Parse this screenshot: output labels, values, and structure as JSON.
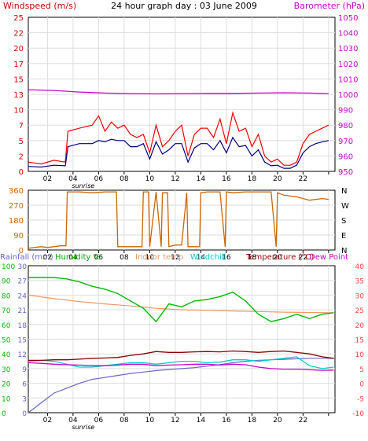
{
  "chart_data": [
    {
      "type": "line",
      "title": "24 hour graph day : 03 June 2009",
      "left_axis_title": "Windspeed (m/s)",
      "right_axis_title": "Barometer (hPa)",
      "x_ticks": [
        "02",
        "04",
        "06",
        "08",
        "10",
        "12",
        "14",
        "16",
        "18",
        "20",
        "22",
        ""
      ],
      "x_sub_label": "sunrise",
      "ylim_left": [
        0,
        25
      ],
      "yticks_left": [
        "0",
        "2",
        "5",
        "7",
        "10",
        "13",
        "15",
        "17",
        "20",
        "22",
        "25"
      ],
      "ylim_right": [
        950,
        1050
      ],
      "yticks_right": [
        "950",
        "960",
        "970",
        "980",
        "990",
        "1000",
        "1010",
        "1020",
        "1030",
        "1040",
        "1050"
      ],
      "colors": {
        "gust": "#ff0000",
        "wind": "#000080",
        "barometer": "#cc00cc",
        "left_title": "#cc0000",
        "right_title": "#cc00cc"
      },
      "series": [
        {
          "name": "gust",
          "hours": [
            0,
            1,
            2,
            2.9,
            3.1,
            4,
            5,
            5.5,
            6,
            6.5,
            7,
            7.5,
            8,
            8.5,
            9,
            9.5,
            10,
            10.5,
            11,
            11.5,
            12,
            12.5,
            13,
            13.5,
            14,
            14.5,
            15,
            15.5,
            16,
            16.5,
            17,
            17.5,
            18,
            18.5,
            19,
            19.5,
            20,
            20.5,
            21,
            21.5,
            22,
            22.5,
            23,
            23.5
          ],
          "values": [
            1.5,
            1.2,
            1.8,
            1.5,
            6.5,
            7.0,
            7.5,
            9.0,
            6.5,
            8.0,
            7.0,
            7.5,
            6.0,
            5.5,
            6.0,
            3.0,
            7.5,
            4.0,
            5.0,
            6.5,
            7.5,
            2.5,
            6.0,
            7.0,
            7.0,
            5.5,
            8.5,
            4.5,
            9.5,
            6.5,
            7.0,
            4.0,
            6.0,
            2.5,
            1.5,
            2.0,
            1.0,
            1.0,
            1.5,
            4.5,
            6.0,
            6.5,
            7.0,
            7.5
          ]
        },
        {
          "name": "wind",
          "hours": [
            0,
            1,
            2,
            2.9,
            3.1,
            4,
            5,
            5.5,
            6,
            6.5,
            7,
            7.5,
            8,
            8.5,
            9,
            9.5,
            10,
            10.5,
            11,
            11.5,
            12,
            12.5,
            13,
            13.5,
            14,
            14.5,
            15,
            15.5,
            16,
            16.5,
            17,
            17.5,
            18,
            18.5,
            19,
            19.5,
            20,
            20.5,
            21,
            21.5,
            22,
            22.5,
            23,
            23.5
          ],
          "values": [
            0.8,
            0.7,
            1.0,
            0.9,
            4.0,
            4.5,
            4.5,
            5.0,
            4.8,
            5.2,
            5.0,
            5.0,
            4.0,
            4.0,
            4.5,
            2.0,
            4.8,
            2.8,
            3.5,
            4.5,
            4.5,
            1.5,
            3.8,
            4.5,
            4.5,
            3.5,
            5.0,
            3.0,
            5.5,
            4.0,
            4.2,
            2.5,
            3.5,
            1.5,
            0.9,
            1.0,
            0.5,
            0.5,
            1.0,
            3.0,
            4.0,
            4.5,
            4.8,
            5.0
          ]
        },
        {
          "name": "barometer",
          "hours": [
            0,
            2,
            4,
            6,
            8,
            10,
            12,
            14,
            16,
            18,
            20,
            22,
            23.5
          ],
          "values": [
            1003,
            1002.5,
            1001.5,
            1000.8,
            1000.5,
            1000.3,
            1000.5,
            1000.6,
            1000.6,
            1000.8,
            1001,
            1000.8,
            1000.5
          ]
        }
      ]
    },
    {
      "type": "line",
      "left_axis_title": "",
      "ylim_left": [
        0,
        360
      ],
      "yticks_left": [
        "0",
        "90",
        "180",
        "270",
        "360"
      ],
      "right_labels": [
        "N",
        "W",
        "S",
        "E",
        "N"
      ],
      "x_ticks": [
        "02",
        "04",
        "06",
        "08",
        "10",
        "12",
        "14",
        "16",
        "18",
        "20",
        "22",
        ""
      ],
      "colors": {
        "direction": "#cc6600"
      },
      "series": [
        {
          "name": "wind direction",
          "hours": [
            0,
            0.5,
            1,
            1.5,
            2,
            2.5,
            2.95,
            3.05,
            4,
            5,
            6,
            6.9,
            7.0,
            8,
            8.9,
            9.0,
            9.4,
            9.5,
            10,
            10.4,
            10.5,
            10.9,
            11.0,
            11.5,
            12,
            12.4,
            12.5,
            13.4,
            13.5,
            14,
            15,
            15.4,
            15.5,
            16,
            17,
            18,
            19,
            19.4,
            19.5,
            20,
            21,
            22,
            23,
            23.5
          ],
          "values": [
            10,
            15,
            20,
            15,
            20,
            25,
            25,
            350,
            350,
            345,
            350,
            350,
            20,
            20,
            20,
            350,
            350,
            20,
            350,
            20,
            345,
            345,
            20,
            30,
            30,
            345,
            20,
            20,
            345,
            350,
            350,
            20,
            350,
            345,
            350,
            350,
            350,
            20,
            345,
            330,
            320,
            300,
            310,
            305
          ]
        }
      ]
    },
    {
      "type": "line",
      "titles": [
        "Rainfall (mm)",
        "Humidity %",
        "Indoor temp",
        "Windchill",
        "Temperature (°C)",
        "Dew Point"
      ],
      "x_ticks": [
        "02",
        "04",
        "06",
        "08",
        "10",
        "12",
        "14",
        "16",
        "18",
        "20",
        "22",
        ""
      ],
      "x_sub_label": "sunrise",
      "ylim_rain": [
        0,
        30
      ],
      "yticks_rain": [
        "0",
        "3",
        "6",
        "9",
        "12",
        "15",
        "18",
        "21",
        "24",
        "27",
        "30"
      ],
      "ylim_hum": [
        0,
        100
      ],
      "yticks_hum": [
        "0",
        "10",
        "20",
        "30",
        "40",
        "50",
        "60",
        "70",
        "80",
        "90",
        "100"
      ],
      "ylim_temp": [
        -10,
        40
      ],
      "yticks_temp": [
        "-10",
        "-5",
        "0",
        "5",
        "10",
        "15",
        "20",
        "25",
        "30",
        "35",
        "40"
      ],
      "colors": {
        "rainfall": "#6666cc",
        "humidity": "#00bb00",
        "indoor": "#ee9966",
        "windchill": "#00cccc",
        "temperature": "#880000",
        "dewpoint": "#cc00cc",
        "right_ticks": "#ff4444",
        "title_rain": "#6666cc",
        "title_hum": "#00aa00",
        "title_indoor": "#ee9966",
        "title_chill": "#00cccc",
        "title_temp": "#990000",
        "title_dew": "#cc00cc"
      },
      "series": [
        {
          "name": "rainfall",
          "hours": [
            0,
            1,
            2,
            3,
            4,
            5,
            6,
            7,
            8,
            9,
            10,
            11,
            12,
            13,
            14,
            15,
            16,
            17,
            18,
            19,
            20,
            21,
            22,
            23,
            23.9,
            24
          ],
          "values": [
            0,
            2,
            4,
            5,
            6,
            6.8,
            7.2,
            7.6,
            8.0,
            8.3,
            8.6,
            8.8,
            9.0,
            9.2,
            9.5,
            9.8,
            10.2,
            10.5,
            10.7,
            10.8,
            10.9,
            11.0,
            11.1,
            11.1,
            11.1,
            11.1
          ]
        },
        {
          "name": "humidity",
          "hours": [
            0,
            1,
            2,
            3,
            4,
            5,
            6,
            7,
            8,
            9,
            10,
            11,
            12,
            13,
            14,
            15,
            16,
            17,
            18,
            19,
            20,
            21,
            22,
            23,
            23.9
          ],
          "values": [
            92,
            92,
            92,
            91,
            89,
            86,
            84,
            81,
            76,
            71,
            62,
            74,
            72,
            76,
            77,
            79,
            82,
            76,
            67,
            62,
            64,
            67,
            64,
            67,
            68
          ]
        },
        {
          "name": "indoor temp",
          "hours": [
            0,
            2,
            4,
            6,
            8,
            10,
            12,
            14,
            16,
            18,
            20,
            22,
            23.9
          ],
          "values": [
            30,
            28.8,
            27.8,
            27,
            26.3,
            25.5,
            25,
            24.8,
            24.6,
            24.4,
            24.2,
            24.1,
            24
          ]
        },
        {
          "name": "windchill",
          "hours": [
            0,
            1,
            2,
            3,
            4,
            5,
            6,
            7,
            8,
            9,
            10,
            11,
            12,
            13,
            14,
            15,
            16,
            17,
            18,
            19,
            20,
            21,
            22,
            23,
            23.9
          ],
          "values": [
            7.5,
            7.8,
            7.5,
            6.5,
            5.5,
            5.5,
            6,
            6.5,
            7,
            7,
            6.5,
            7,
            7.5,
            7.5,
            7,
            7.2,
            8,
            8,
            7.5,
            8,
            8.5,
            9,
            6,
            5,
            5.5
          ]
        },
        {
          "name": "temperature",
          "hours": [
            0,
            1,
            2,
            3,
            4,
            5,
            6,
            7,
            8,
            9,
            10,
            11,
            12,
            13,
            14,
            15,
            16,
            17,
            18,
            19,
            20,
            21,
            22,
            23,
            23.9
          ],
          "values": [
            7.8,
            7.8,
            8,
            8,
            8.2,
            8.5,
            8.6,
            8.8,
            9.5,
            10,
            10.8,
            10.5,
            10.5,
            10.7,
            10.8,
            10.7,
            11,
            10.8,
            10.5,
            10.8,
            11,
            10.5,
            10,
            9,
            8.5
          ]
        },
        {
          "name": "dew point",
          "hours": [
            0,
            1,
            2,
            3,
            4,
            5,
            6,
            7,
            8,
            9,
            10,
            11,
            12,
            13,
            14,
            15,
            16,
            17,
            18,
            19,
            20,
            21,
            22,
            23,
            23.9
          ],
          "values": [
            7,
            6.8,
            6.5,
            6.3,
            6.2,
            6,
            6,
            6.2,
            6.5,
            6.5,
            6,
            6.2,
            6.3,
            6.5,
            6.5,
            6.2,
            6.5,
            6.3,
            5.5,
            5,
            4.8,
            4.8,
            4.6,
            4.4,
            4.5
          ]
        }
      ]
    }
  ]
}
